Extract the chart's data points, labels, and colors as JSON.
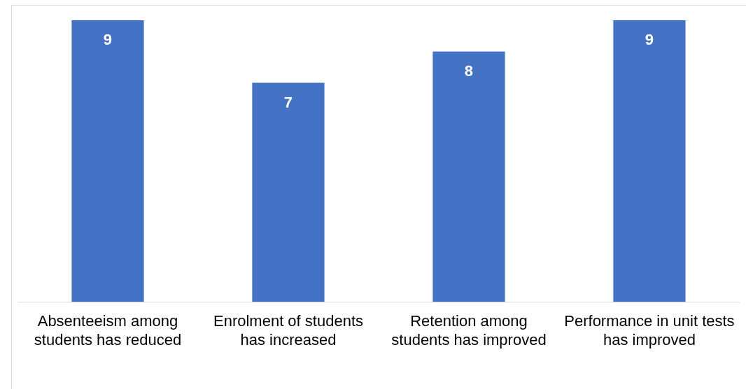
{
  "chart_data": {
    "type": "bar",
    "categories": [
      "Absenteeism among students has reduced",
      "Enrolment of students has increased",
      "Retention among students has improved",
      "Performance in unit tests has improved"
    ],
    "values": [
      9,
      7,
      8,
      9
    ],
    "color": "#4472c4",
    "ylim": [
      0,
      9
    ],
    "data_labels": true,
    "grid": false,
    "legend": false,
    "tick_labels": "x"
  }
}
